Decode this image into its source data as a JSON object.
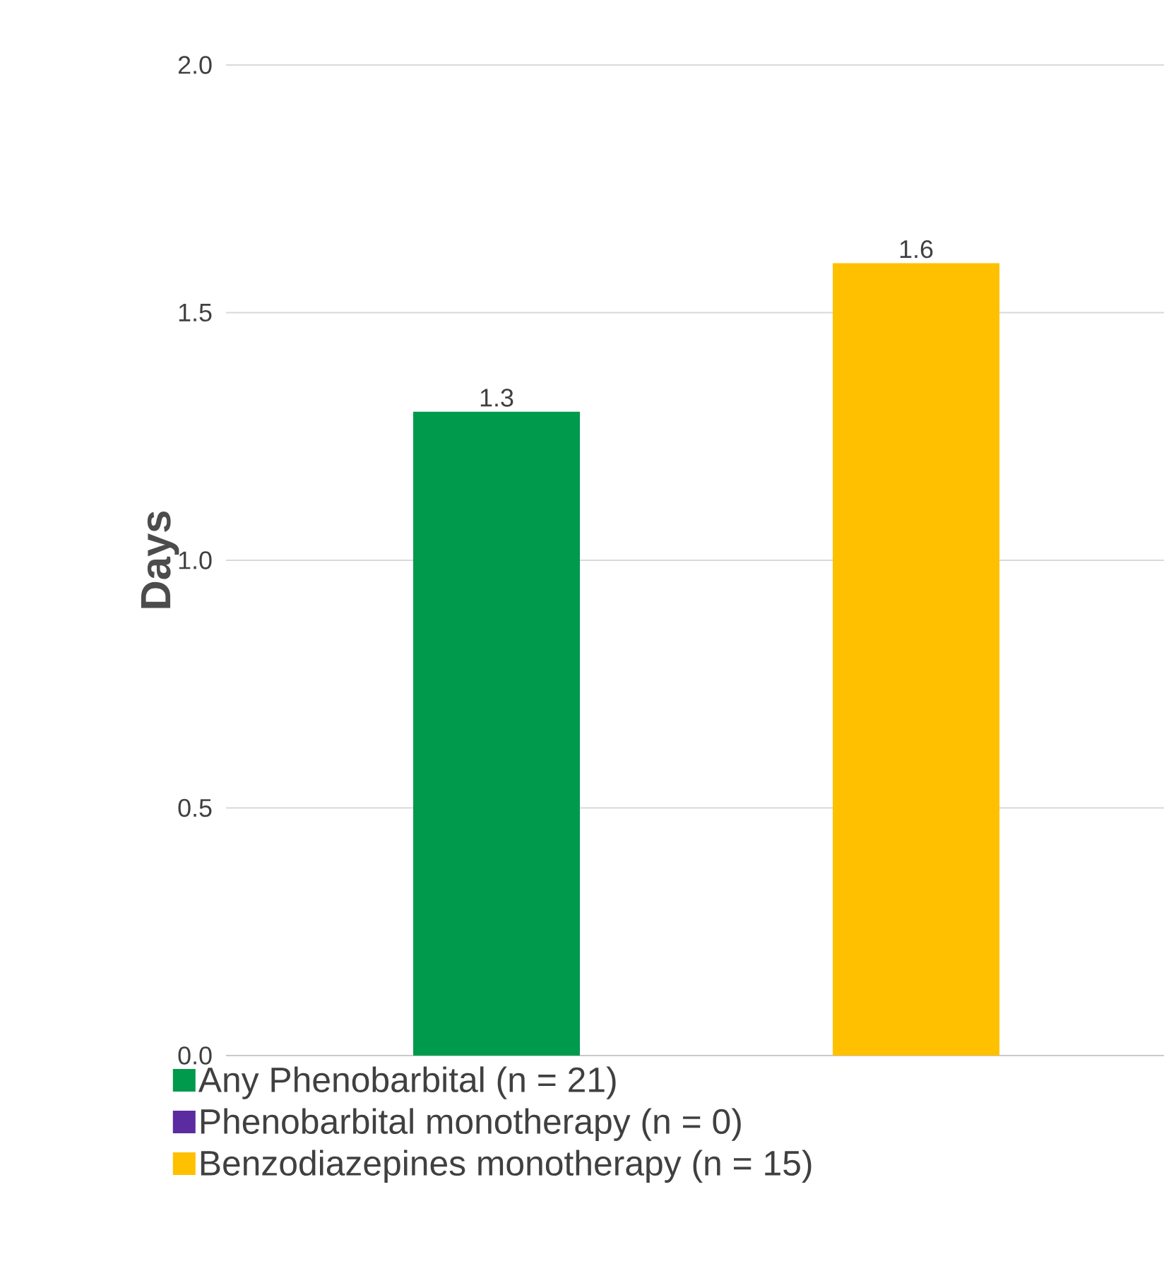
{
  "chart_data": {
    "type": "bar",
    "ylabel": "Days",
    "categories": [
      null
    ],
    "series": [
      {
        "name": "Any Phenobarbital (n = 21)",
        "color": "#009a4c",
        "values": [
          1.3
        ]
      },
      {
        "name": "Phenobarbital monotherapy (n = 0)",
        "color": "#5b2ca0",
        "values": [
          null
        ]
      },
      {
        "name": "Benzodiazepines monotherapy (n = 15)",
        "color": "#ffc000",
        "values": [
          1.6
        ]
      }
    ],
    "ylim": [
      0,
      2
    ],
    "yticks": [
      {
        "value": 0,
        "label": "0.0"
      },
      {
        "value": 0.5,
        "label": "0.5"
      },
      {
        "value": 1,
        "label": "1.0"
      },
      {
        "value": 1.5,
        "label": "1.5"
      },
      {
        "value": 2,
        "label": "2.0"
      }
    ],
    "grid": "y",
    "legend": "bottom",
    "data_labels": true
  }
}
